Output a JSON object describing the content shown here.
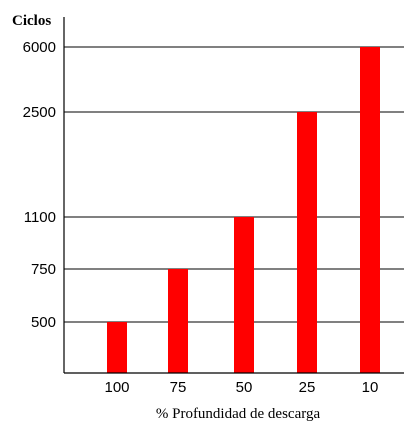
{
  "chart_data": {
    "type": "bar",
    "title": "",
    "ylabel": "Ciclos",
    "xlabel": "% Profundidad de descarga",
    "categories": [
      "100",
      "75",
      "50",
      "25",
      "10"
    ],
    "values": [
      500,
      750,
      1100,
      2500,
      6000
    ],
    "yticks": [
      500,
      750,
      1100,
      2500,
      6000
    ],
    "y_scale": "ordinal-ticks (non-linear spacing as printed)",
    "grid": "horizontal lines at y tick values",
    "legend": "none",
    "bar_color": "#ff0000"
  }
}
